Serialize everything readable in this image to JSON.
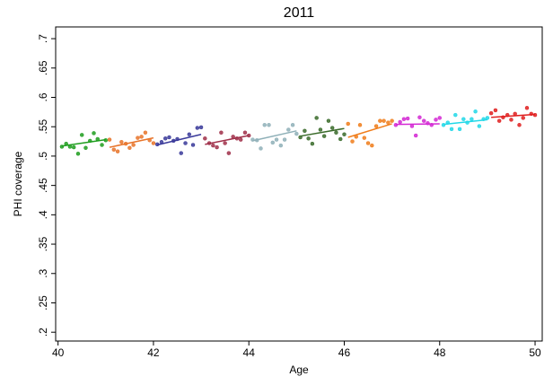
{
  "chart_data": {
    "type": "scatter",
    "title": "2011",
    "x_label": "Age",
    "y_label": "PHI coverage",
    "xlim": [
      39.95,
      50.15
    ],
    "ylim": [
      0.185,
      0.72
    ],
    "xticks": [
      40,
      42,
      44,
      46,
      48,
      50
    ],
    "yticks": [
      {
        "value": 0.2,
        "label": ".2"
      },
      {
        "value": 0.25,
        "label": ".25"
      },
      {
        "value": 0.3,
        "label": ".3"
      },
      {
        "value": 0.35,
        "label": ".35"
      },
      {
        "value": 0.4,
        "label": ".4"
      },
      {
        "value": 0.45,
        "label": ".45"
      },
      {
        "value": 0.5,
        "label": ".5"
      },
      {
        "value": 0.55,
        "label": ".55"
      },
      {
        "value": 0.6,
        "label": ".6"
      },
      {
        "value": 0.65,
        "label": ".65"
      },
      {
        "value": 0.7,
        "label": ".7"
      }
    ],
    "series": [
      {
        "color": "#1f9e1f",
        "x": [
          40.08,
          40.17,
          40.25,
          40.33,
          40.42,
          40.5,
          40.58,
          40.67,
          40.75,
          40.83,
          40.92,
          41.0
        ],
        "values": [
          0.516,
          0.521,
          0.516,
          0.515,
          0.504,
          0.536,
          0.514,
          0.526,
          0.539,
          0.529,
          0.519,
          0.527
        ],
        "fit": [
          0.517,
          0.528
        ]
      },
      {
        "color": "#e8742a",
        "x": [
          41.08,
          41.17,
          41.25,
          41.33,
          41.42,
          41.5,
          41.58,
          41.67,
          41.75,
          41.83,
          41.92,
          42.0
        ],
        "values": [
          0.528,
          0.511,
          0.508,
          0.524,
          0.521,
          0.514,
          0.519,
          0.531,
          0.533,
          0.54,
          0.527,
          0.522
        ],
        "fit": [
          0.515,
          0.531
        ]
      },
      {
        "color": "#3a3a9a",
        "x": [
          42.08,
          42.17,
          42.25,
          42.33,
          42.42,
          42.5,
          42.58,
          42.67,
          42.75,
          42.83,
          42.92,
          43.0
        ],
        "values": [
          0.52,
          0.524,
          0.53,
          0.532,
          0.526,
          0.529,
          0.505,
          0.522,
          0.537,
          0.519,
          0.548,
          0.549
        ],
        "fit": [
          0.519,
          0.537
        ]
      },
      {
        "color": "#a0304a",
        "x": [
          43.08,
          43.17,
          43.25,
          43.33,
          43.42,
          43.5,
          43.58,
          43.67,
          43.75,
          43.83,
          43.92,
          44.0
        ],
        "values": [
          0.53,
          0.522,
          0.518,
          0.515,
          0.54,
          0.522,
          0.505,
          0.533,
          0.53,
          0.528,
          0.54,
          0.535
        ],
        "fit": [
          0.52,
          0.535
        ]
      },
      {
        "color": "#8fb0b8",
        "x": [
          44.08,
          44.17,
          44.25,
          44.33,
          44.42,
          44.5,
          44.58,
          44.67,
          44.75,
          44.83,
          44.92,
          45.0
        ],
        "values": [
          0.528,
          0.527,
          0.513,
          0.553,
          0.553,
          0.523,
          0.528,
          0.518,
          0.528,
          0.545,
          0.553,
          0.538
        ],
        "fit": [
          0.526,
          0.543
        ]
      },
      {
        "color": "#3a6b2a",
        "x": [
          45.08,
          45.17,
          45.25,
          45.33,
          45.42,
          45.5,
          45.58,
          45.67,
          45.75,
          45.83,
          45.92,
          46.0
        ],
        "values": [
          0.532,
          0.543,
          0.53,
          0.521,
          0.565,
          0.545,
          0.534,
          0.56,
          0.548,
          0.54,
          0.529,
          0.537
        ],
        "fit": [
          0.534,
          0.547
        ]
      },
      {
        "color": "#f07d1a",
        "x": [
          46.08,
          46.17,
          46.25,
          46.33,
          46.42,
          46.5,
          46.58,
          46.67,
          46.75,
          46.83,
          46.92,
          47.0
        ],
        "values": [
          0.555,
          0.525,
          0.533,
          0.553,
          0.531,
          0.522,
          0.518,
          0.551,
          0.56,
          0.56,
          0.557,
          0.56
        ],
        "fit": [
          0.532,
          0.555
        ]
      },
      {
        "color": "#d428d4",
        "x": [
          47.08,
          47.17,
          47.25,
          47.33,
          47.42,
          47.5,
          47.58,
          47.67,
          47.75,
          47.83,
          47.92,
          48.0
        ],
        "values": [
          0.553,
          0.558,
          0.563,
          0.564,
          0.551,
          0.535,
          0.566,
          0.56,
          0.556,
          0.553,
          0.562,
          0.565
        ],
        "fit": [
          0.554,
          0.555
        ]
      },
      {
        "color": "#22d8e8",
        "x": [
          48.08,
          48.17,
          48.25,
          48.33,
          48.42,
          48.5,
          48.58,
          48.67,
          48.75,
          48.83,
          48.92,
          49.0
        ],
        "values": [
          0.553,
          0.557,
          0.546,
          0.57,
          0.546,
          0.563,
          0.557,
          0.563,
          0.576,
          0.551,
          0.563,
          0.565
        ],
        "fit": [
          0.554,
          0.562
        ]
      },
      {
        "color": "#e02020",
        "x": [
          49.08,
          49.17,
          49.25,
          49.33,
          49.42,
          49.5,
          49.58,
          49.67,
          49.75,
          49.83,
          49.92,
          50.0
        ],
        "values": [
          0.573,
          0.578,
          0.56,
          0.566,
          0.57,
          0.562,
          0.572,
          0.553,
          0.565,
          0.582,
          0.572,
          0.57
        ],
        "fit": [
          0.566,
          0.571
        ]
      }
    ]
  }
}
